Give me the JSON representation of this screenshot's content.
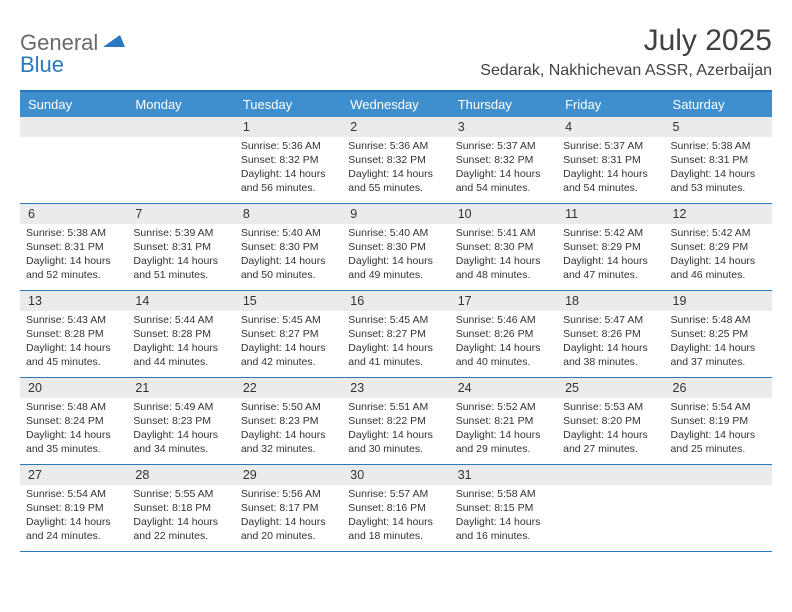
{
  "brand": {
    "part1": "General",
    "part2": "Blue"
  },
  "title": "July 2025",
  "location": "Sedarak, Nakhichevan ASSR, Azerbaijan",
  "colors": {
    "accent": "#2a78bd",
    "header_bg": "#3f8fce",
    "daynum_bg": "#ebebeb",
    "text": "#333333",
    "title_text": "#414141",
    "logo_gray": "#6a6a6a",
    "background": "#ffffff"
  },
  "daysOfWeek": [
    "Sunday",
    "Monday",
    "Tuesday",
    "Wednesday",
    "Thursday",
    "Friday",
    "Saturday"
  ],
  "weeks": [
    [
      {
        "n": "",
        "sr": "",
        "ss": "",
        "dl": ""
      },
      {
        "n": "",
        "sr": "",
        "ss": "",
        "dl": ""
      },
      {
        "n": "1",
        "sr": "Sunrise: 5:36 AM",
        "ss": "Sunset: 8:32 PM",
        "dl": "Daylight: 14 hours and 56 minutes."
      },
      {
        "n": "2",
        "sr": "Sunrise: 5:36 AM",
        "ss": "Sunset: 8:32 PM",
        "dl": "Daylight: 14 hours and 55 minutes."
      },
      {
        "n": "3",
        "sr": "Sunrise: 5:37 AM",
        "ss": "Sunset: 8:32 PM",
        "dl": "Daylight: 14 hours and 54 minutes."
      },
      {
        "n": "4",
        "sr": "Sunrise: 5:37 AM",
        "ss": "Sunset: 8:31 PM",
        "dl": "Daylight: 14 hours and 54 minutes."
      },
      {
        "n": "5",
        "sr": "Sunrise: 5:38 AM",
        "ss": "Sunset: 8:31 PM",
        "dl": "Daylight: 14 hours and 53 minutes."
      }
    ],
    [
      {
        "n": "6",
        "sr": "Sunrise: 5:38 AM",
        "ss": "Sunset: 8:31 PM",
        "dl": "Daylight: 14 hours and 52 minutes."
      },
      {
        "n": "7",
        "sr": "Sunrise: 5:39 AM",
        "ss": "Sunset: 8:31 PM",
        "dl": "Daylight: 14 hours and 51 minutes."
      },
      {
        "n": "8",
        "sr": "Sunrise: 5:40 AM",
        "ss": "Sunset: 8:30 PM",
        "dl": "Daylight: 14 hours and 50 minutes."
      },
      {
        "n": "9",
        "sr": "Sunrise: 5:40 AM",
        "ss": "Sunset: 8:30 PM",
        "dl": "Daylight: 14 hours and 49 minutes."
      },
      {
        "n": "10",
        "sr": "Sunrise: 5:41 AM",
        "ss": "Sunset: 8:30 PM",
        "dl": "Daylight: 14 hours and 48 minutes."
      },
      {
        "n": "11",
        "sr": "Sunrise: 5:42 AM",
        "ss": "Sunset: 8:29 PM",
        "dl": "Daylight: 14 hours and 47 minutes."
      },
      {
        "n": "12",
        "sr": "Sunrise: 5:42 AM",
        "ss": "Sunset: 8:29 PM",
        "dl": "Daylight: 14 hours and 46 minutes."
      }
    ],
    [
      {
        "n": "13",
        "sr": "Sunrise: 5:43 AM",
        "ss": "Sunset: 8:28 PM",
        "dl": "Daylight: 14 hours and 45 minutes."
      },
      {
        "n": "14",
        "sr": "Sunrise: 5:44 AM",
        "ss": "Sunset: 8:28 PM",
        "dl": "Daylight: 14 hours and 44 minutes."
      },
      {
        "n": "15",
        "sr": "Sunrise: 5:45 AM",
        "ss": "Sunset: 8:27 PM",
        "dl": "Daylight: 14 hours and 42 minutes."
      },
      {
        "n": "16",
        "sr": "Sunrise: 5:45 AM",
        "ss": "Sunset: 8:27 PM",
        "dl": "Daylight: 14 hours and 41 minutes."
      },
      {
        "n": "17",
        "sr": "Sunrise: 5:46 AM",
        "ss": "Sunset: 8:26 PM",
        "dl": "Daylight: 14 hours and 40 minutes."
      },
      {
        "n": "18",
        "sr": "Sunrise: 5:47 AM",
        "ss": "Sunset: 8:26 PM",
        "dl": "Daylight: 14 hours and 38 minutes."
      },
      {
        "n": "19",
        "sr": "Sunrise: 5:48 AM",
        "ss": "Sunset: 8:25 PM",
        "dl": "Daylight: 14 hours and 37 minutes."
      }
    ],
    [
      {
        "n": "20",
        "sr": "Sunrise: 5:48 AM",
        "ss": "Sunset: 8:24 PM",
        "dl": "Daylight: 14 hours and 35 minutes."
      },
      {
        "n": "21",
        "sr": "Sunrise: 5:49 AM",
        "ss": "Sunset: 8:23 PM",
        "dl": "Daylight: 14 hours and 34 minutes."
      },
      {
        "n": "22",
        "sr": "Sunrise: 5:50 AM",
        "ss": "Sunset: 8:23 PM",
        "dl": "Daylight: 14 hours and 32 minutes."
      },
      {
        "n": "23",
        "sr": "Sunrise: 5:51 AM",
        "ss": "Sunset: 8:22 PM",
        "dl": "Daylight: 14 hours and 30 minutes."
      },
      {
        "n": "24",
        "sr": "Sunrise: 5:52 AM",
        "ss": "Sunset: 8:21 PM",
        "dl": "Daylight: 14 hours and 29 minutes."
      },
      {
        "n": "25",
        "sr": "Sunrise: 5:53 AM",
        "ss": "Sunset: 8:20 PM",
        "dl": "Daylight: 14 hours and 27 minutes."
      },
      {
        "n": "26",
        "sr": "Sunrise: 5:54 AM",
        "ss": "Sunset: 8:19 PM",
        "dl": "Daylight: 14 hours and 25 minutes."
      }
    ],
    [
      {
        "n": "27",
        "sr": "Sunrise: 5:54 AM",
        "ss": "Sunset: 8:19 PM",
        "dl": "Daylight: 14 hours and 24 minutes."
      },
      {
        "n": "28",
        "sr": "Sunrise: 5:55 AM",
        "ss": "Sunset: 8:18 PM",
        "dl": "Daylight: 14 hours and 22 minutes."
      },
      {
        "n": "29",
        "sr": "Sunrise: 5:56 AM",
        "ss": "Sunset: 8:17 PM",
        "dl": "Daylight: 14 hours and 20 minutes."
      },
      {
        "n": "30",
        "sr": "Sunrise: 5:57 AM",
        "ss": "Sunset: 8:16 PM",
        "dl": "Daylight: 14 hours and 18 minutes."
      },
      {
        "n": "31",
        "sr": "Sunrise: 5:58 AM",
        "ss": "Sunset: 8:15 PM",
        "dl": "Daylight: 14 hours and 16 minutes."
      },
      {
        "n": "",
        "sr": "",
        "ss": "",
        "dl": ""
      },
      {
        "n": "",
        "sr": "",
        "ss": "",
        "dl": ""
      }
    ]
  ]
}
